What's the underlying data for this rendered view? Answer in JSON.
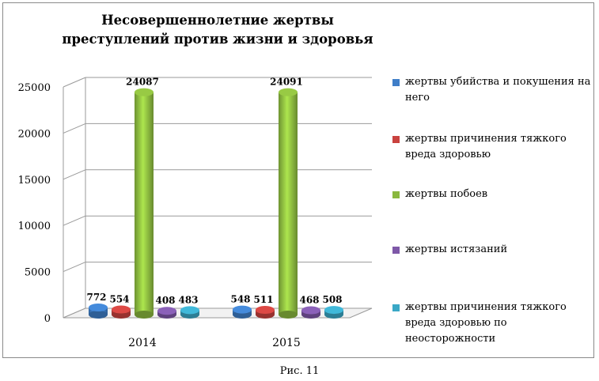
{
  "chart_data": {
    "type": "bar",
    "title": "Несовершеннолетние жертвы преступлений против жизни и здоровья",
    "categories": [
      "2014",
      "2015"
    ],
    "ylim": [
      0,
      25000
    ],
    "yticks": [
      "0",
      "5000",
      "10000",
      "15000",
      "20000",
      "25000"
    ],
    "series": [
      {
        "name": "жертвы убийства и покушения на него",
        "values": [
          772,
          548
        ],
        "color": "#3f7ec8"
      },
      {
        "name": "жертвы причинения тяжкого вреда здоровью",
        "values": [
          554,
          511
        ],
        "color": "#c9423f"
      },
      {
        "name": "жертвы побоев",
        "values": [
          24087,
          24091
        ],
        "color": "#8ab83e"
      },
      {
        "name": "жертвы истязаний",
        "values": [
          408,
          468
        ],
        "color": "#7e58a8"
      },
      {
        "name": "жертвы причинения тяжкого вреда здоровью по неосторожности",
        "values": [
          483,
          508
        ],
        "color": "#3aa8c6"
      }
    ],
    "legend_position": "right",
    "grid": true
  },
  "caption": "Рис. 11"
}
